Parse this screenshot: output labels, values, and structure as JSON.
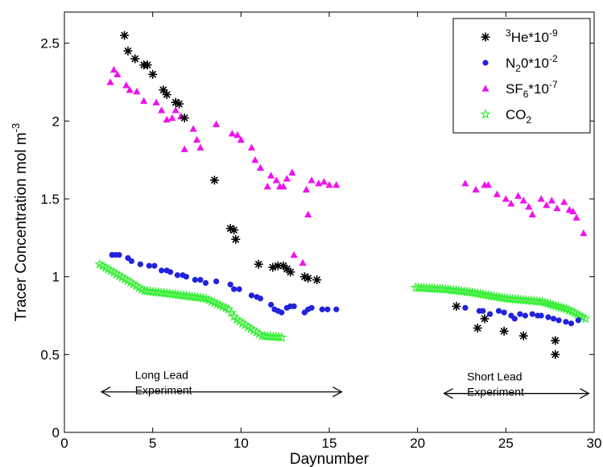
{
  "chart_data": {
    "type": "scatter",
    "xlabel": "Daynumber",
    "ylabel": "Tracer Concentration mol m",
    "ylabel_sup": "-3",
    "xlim": [
      0,
      30
    ],
    "ylim": [
      0,
      2.7
    ],
    "xticks": [
      0,
      5,
      10,
      15,
      20,
      25,
      30
    ],
    "yticks": [
      0,
      0.5,
      1,
      1.5,
      2,
      2.5
    ],
    "grid": false,
    "legend_position": "top-right",
    "series": [
      {
        "name_pre": "3",
        "name_base": "He*10",
        "name_sup": "-9",
        "marker": "asterisk",
        "color": "#000000",
        "points": [
          [
            3.4,
            2.55
          ],
          [
            3.6,
            2.45
          ],
          [
            4.0,
            2.4
          ],
          [
            4.5,
            2.36
          ],
          [
            4.7,
            2.36
          ],
          [
            5.0,
            2.3
          ],
          [
            5.6,
            2.2
          ],
          [
            5.8,
            2.17
          ],
          [
            6.3,
            2.12
          ],
          [
            6.5,
            2.11
          ],
          [
            6.8,
            2.02
          ],
          [
            8.5,
            1.62
          ],
          [
            9.4,
            1.31
          ],
          [
            9.6,
            1.3
          ],
          [
            9.7,
            1.24
          ],
          [
            11.0,
            1.08
          ],
          [
            11.8,
            1.06
          ],
          [
            12.1,
            1.07
          ],
          [
            12.4,
            1.07
          ],
          [
            12.6,
            1.05
          ],
          [
            12.8,
            1.03
          ],
          [
            13.6,
            1.0
          ],
          [
            13.8,
            0.99
          ],
          [
            14.3,
            0.98
          ],
          [
            22.2,
            0.81
          ],
          [
            23.4,
            0.67
          ],
          [
            23.8,
            0.73
          ],
          [
            24.9,
            0.65
          ],
          [
            26.0,
            0.62
          ],
          [
            27.8,
            0.59
          ],
          [
            27.8,
            0.5
          ]
        ]
      },
      {
        "name_pre": "",
        "name_base": "N",
        "name_sub": "2",
        "name_after": "0*10",
        "name_sup": "-2",
        "marker": "circle",
        "color": "#2222dd",
        "points": [
          [
            2.7,
            1.14
          ],
          [
            2.9,
            1.14
          ],
          [
            3.1,
            1.14
          ],
          [
            3.6,
            1.12
          ],
          [
            3.8,
            1.1
          ],
          [
            4.3,
            1.08
          ],
          [
            4.8,
            1.07
          ],
          [
            5.1,
            1.07
          ],
          [
            5.5,
            1.04
          ],
          [
            5.8,
            1.04
          ],
          [
            6.0,
            1.03
          ],
          [
            6.4,
            1.01
          ],
          [
            6.7,
            1.01
          ],
          [
            6.9,
            1.0
          ],
          [
            7.4,
            0.98
          ],
          [
            7.7,
            0.98
          ],
          [
            8.0,
            0.96
          ],
          [
            8.6,
            0.97
          ],
          [
            9.4,
            0.95
          ],
          [
            9.6,
            0.92
          ],
          [
            9.9,
            0.92
          ],
          [
            10.6,
            0.88
          ],
          [
            10.9,
            0.87
          ],
          [
            11.1,
            0.86
          ],
          [
            11.7,
            0.82
          ],
          [
            11.9,
            0.79
          ],
          [
            12.1,
            0.78
          ],
          [
            12.3,
            0.77
          ],
          [
            12.6,
            0.8
          ],
          [
            12.8,
            0.81
          ],
          [
            13.0,
            0.81
          ],
          [
            13.6,
            0.77
          ],
          [
            13.8,
            0.79
          ],
          [
            14.0,
            0.8
          ],
          [
            14.6,
            0.79
          ],
          [
            14.9,
            0.79
          ],
          [
            15.4,
            0.79
          ],
          [
            22.7,
            0.8
          ],
          [
            23.5,
            0.78
          ],
          [
            23.7,
            0.78
          ],
          [
            24.1,
            0.76
          ],
          [
            24.6,
            0.78
          ],
          [
            24.9,
            0.77
          ],
          [
            25.3,
            0.75
          ],
          [
            25.5,
            0.73
          ],
          [
            25.8,
            0.76
          ],
          [
            26.1,
            0.75
          ],
          [
            26.5,
            0.76
          ],
          [
            26.8,
            0.75
          ],
          [
            27.0,
            0.75
          ],
          [
            27.4,
            0.74
          ],
          [
            27.7,
            0.73
          ],
          [
            28.0,
            0.72
          ],
          [
            28.4,
            0.71
          ],
          [
            28.7,
            0.7
          ],
          [
            29.1,
            0.72
          ]
        ]
      },
      {
        "name_pre": "",
        "name_base": "SF",
        "name_sub": "6",
        "name_after": "*10",
        "name_sup": "-7",
        "marker": "triangle",
        "color": "#ee11ee",
        "points": [
          [
            2.6,
            2.25
          ],
          [
            2.8,
            2.33
          ],
          [
            3.0,
            2.3
          ],
          [
            3.5,
            2.23
          ],
          [
            3.7,
            2.2
          ],
          [
            4.1,
            2.19
          ],
          [
            4.5,
            2.13
          ],
          [
            5.2,
            2.12
          ],
          [
            5.5,
            2.07
          ],
          [
            5.8,
            2.01
          ],
          [
            6.1,
            2.02
          ],
          [
            6.3,
            2.07
          ],
          [
            6.6,
            2.03
          ],
          [
            6.8,
            1.82
          ],
          [
            7.3,
            1.95
          ],
          [
            7.5,
            1.88
          ],
          [
            7.7,
            1.83
          ],
          [
            8.6,
            1.98
          ],
          [
            9.5,
            1.92
          ],
          [
            9.8,
            1.91
          ],
          [
            10.0,
            1.88
          ],
          [
            10.6,
            1.83
          ],
          [
            10.8,
            1.75
          ],
          [
            11.1,
            1.7
          ],
          [
            11.5,
            1.58
          ],
          [
            11.7,
            1.65
          ],
          [
            12.0,
            1.62
          ],
          [
            12.2,
            1.58
          ],
          [
            12.4,
            1.58
          ],
          [
            12.6,
            1.63
          ],
          [
            12.9,
            1.67
          ],
          [
            13.0,
            1.14
          ],
          [
            13.5,
            1.09
          ],
          [
            13.7,
            1.56
          ],
          [
            13.8,
            1.4
          ],
          [
            14.0,
            1.62
          ],
          [
            14.4,
            1.6
          ],
          [
            14.7,
            1.61
          ],
          [
            15.0,
            1.59
          ],
          [
            15.4,
            1.59
          ],
          [
            22.7,
            1.6
          ],
          [
            23.3,
            1.56
          ],
          [
            23.8,
            1.59
          ],
          [
            24.0,
            1.59
          ],
          [
            24.5,
            1.53
          ],
          [
            25.0,
            1.5
          ],
          [
            25.3,
            1.47
          ],
          [
            25.7,
            1.52
          ],
          [
            26.0,
            1.49
          ],
          [
            26.3,
            1.45
          ],
          [
            26.5,
            1.4
          ],
          [
            27.0,
            1.5
          ],
          [
            27.3,
            1.46
          ],
          [
            27.6,
            1.49
          ],
          [
            27.9,
            1.44
          ],
          [
            28.3,
            1.48
          ],
          [
            28.6,
            1.43
          ],
          [
            28.8,
            1.42
          ],
          [
            29.0,
            1.38
          ],
          [
            29.4,
            1.28
          ]
        ]
      },
      {
        "name_pre": "",
        "name_base": "CO",
        "name_sub": "2",
        "name_after": "",
        "marker": "star",
        "color": "#33ee33",
        "segments": [
          {
            "x_start": 2.0,
            "x_end": 12.3,
            "count": 66,
            "knots": [
              [
                2.0,
                1.08
              ],
              [
                3.5,
                0.98
              ],
              [
                4.5,
                0.91
              ],
              [
                6.0,
                0.89
              ],
              [
                8.0,
                0.86
              ],
              [
                9.3,
                0.79
              ],
              [
                9.7,
                0.73
              ],
              [
                10.5,
                0.67
              ],
              [
                11.2,
                0.62
              ],
              [
                12.3,
                0.61
              ]
            ]
          },
          {
            "x_start": 19.9,
            "x_end": 29.5,
            "count": 64,
            "knots": [
              [
                19.9,
                0.93
              ],
              [
                21.5,
                0.92
              ],
              [
                23.0,
                0.9
              ],
              [
                25.0,
                0.86
              ],
              [
                27.0,
                0.84
              ],
              [
                28.5,
                0.79
              ],
              [
                29.5,
                0.73
              ]
            ]
          }
        ]
      }
    ],
    "annotations": [
      {
        "lines": [
          "Long Lead",
          "Experiment"
        ],
        "arrow_x": [
          2.1,
          15.7
        ],
        "arrow_y": 0.26,
        "text_x": 4.0
      },
      {
        "lines": [
          "Short Lead",
          "Experiment"
        ],
        "arrow_x": [
          21.5,
          29.7
        ],
        "arrow_y": 0.25,
        "text_x": 22.8
      }
    ]
  }
}
